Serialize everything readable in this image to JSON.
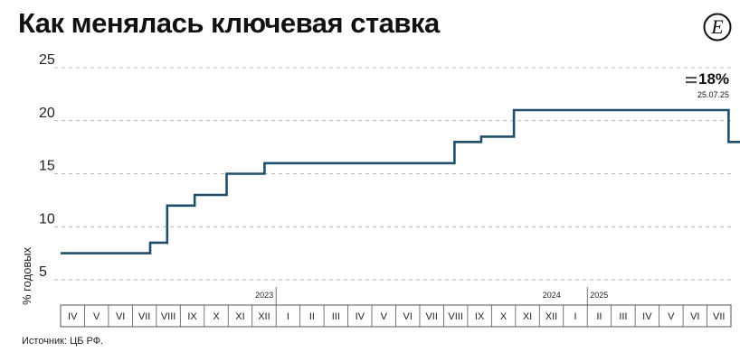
{
  "header": {
    "title": "Как менялась ключевая ставка"
  },
  "footer": {
    "source": "Источник: ЦБ РФ."
  },
  "annotation": {
    "value": "18%",
    "date": "25.07.25"
  },
  "colors": {
    "line": "#1f4e6b",
    "marker": "#a9c3d4",
    "grid": "#bbbbbb",
    "axis_box": "#555555"
  },
  "chart_data": {
    "type": "line",
    "step": true,
    "title": "Как менялась ключевая ставка",
    "ylabel": "% годовых",
    "ylim": [
      5,
      25
    ],
    "yticks": [
      5,
      10,
      15,
      20,
      25
    ],
    "grid": true,
    "x_categories": [
      "IV",
      "V",
      "VI",
      "VII",
      "VIII",
      "IX",
      "X",
      "XI",
      "XII",
      "I",
      "II",
      "III",
      "IV",
      "V",
      "VI",
      "VII",
      "VIII",
      "IX",
      "X",
      "XI",
      "XII",
      "I",
      "II",
      "III",
      "IV",
      "V",
      "VI",
      "VII"
    ],
    "year_labels": [
      {
        "label": "2023",
        "index": 8
      },
      {
        "label": "2024",
        "index": 20
      },
      {
        "label": "2025",
        "index": 21
      }
    ],
    "x_start": "2022-04-01",
    "x": [
      "2022-04-01",
      "2022-07-24",
      "2022-08-15",
      "2022-09-19",
      "2022-10-30",
      "2022-12-17",
      "2023-07-24",
      "2023-08-15",
      "2023-09-18",
      "2023-10-30",
      "2023-12-18",
      "2024-07-29",
      "2024-09-16",
      "2024-10-28",
      "2025-06-09",
      "2025-07-25"
    ],
    "y": [
      7.5,
      8.5,
      12,
      13,
      15,
      16,
      16,
      18,
      18.5,
      21,
      21,
      18,
      19,
      21,
      20,
      18
    ],
    "series": [
      {
        "values": [
          7.5,
          8.5,
          12,
          13,
          15,
          16,
          16,
          18,
          18.5,
          21,
          21,
          18,
          19,
          21,
          20,
          18
        ]
      }
    ],
    "final_point": {
      "x": "2025-07-25",
      "y": 18
    }
  }
}
